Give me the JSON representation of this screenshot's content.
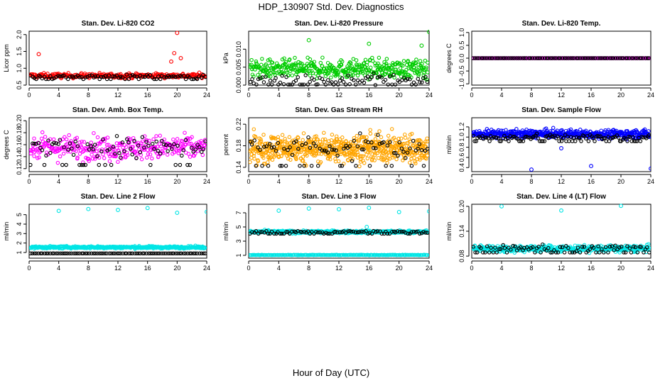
{
  "figure": {
    "title": "HDP_130907  Std. Dev. Diagnostics",
    "xlabel": "Hour of Day (UTC)"
  },
  "chart_data": [
    {
      "type": "scatter",
      "title": "Stan. Dev. Li-820 CO2",
      "ylabel": "Licor ppm",
      "xlim": [
        0,
        24
      ],
      "xticks": [
        0,
        4,
        8,
        12,
        16,
        20,
        24
      ],
      "ylim": [
        0.5,
        2.1
      ],
      "yticks": [
        0.5,
        1.0,
        1.5,
        2.0
      ],
      "ytick_labels": [
        "0.5",
        "1.0",
        "1.5",
        "2.0"
      ],
      "series": [
        {
          "color": "#ff0000",
          "n": 300,
          "center": 0.78,
          "spread": 0.07,
          "outliers": [
            [
              1.3,
              1.42
            ],
            [
              19.6,
              1.45
            ],
            [
              20.0,
              2.05
            ],
            [
              19.2,
              1.2
            ],
            [
              20.5,
              1.3
            ]
          ]
        },
        {
          "color": "#000000",
          "n": 90,
          "center": 0.76,
          "spread": 0.05,
          "outliers": []
        }
      ]
    },
    {
      "type": "scatter",
      "title": "Stan. Dev. Li-820 Pressure",
      "ylabel": "kPa",
      "xlim": [
        0,
        24
      ],
      "xticks": [
        0,
        4,
        8,
        12,
        16,
        20,
        24
      ],
      "ylim": [
        0,
        0.015
      ],
      "yticks": [
        0,
        0.005,
        0.01
      ],
      "ytick_labels": [
        "0.000",
        "0.005",
        "0.010"
      ],
      "series": [
        {
          "color": "#00cc00",
          "n": 420,
          "center": 0.0045,
          "spread": 0.0025,
          "outliers": [
            [
              8.0,
              0.0125
            ],
            [
              16.0,
              0.0115
            ],
            [
              23.0,
              0.011
            ],
            [
              24.0,
              0.0148
            ]
          ]
        },
        {
          "color": "#000000",
          "n": 90,
          "center": 0.0015,
          "spread": 0.0015,
          "outliers": []
        }
      ]
    },
    {
      "type": "scatter",
      "title": "Stan. Dev. Li-820 Temp.",
      "ylabel": "degrees C",
      "xlim": [
        0,
        24
      ],
      "xticks": [
        0,
        4,
        8,
        12,
        16,
        20,
        24
      ],
      "ylim": [
        -1.05,
        1.05
      ],
      "yticks": [
        -1.0,
        -0.5,
        0.0,
        0.5,
        1.0
      ],
      "ytick_labels": [
        "-1.0",
        "-0.5",
        "0.0",
        "0.5",
        "1.0"
      ],
      "series": [
        {
          "color": "#ff00ff",
          "n": 180,
          "center": 0.0,
          "spread": 0.0,
          "outliers": []
        },
        {
          "color": "#000000",
          "n": 90,
          "center": 0.0,
          "spread": 0.0,
          "outliers": []
        }
      ]
    },
    {
      "type": "scatter",
      "title": "Stan. Dev. Amb. Box Temp.",
      "ylabel": "degrees C",
      "xlim": [
        0,
        24
      ],
      "xticks": [
        0,
        4,
        8,
        12,
        16,
        20,
        24
      ],
      "ylim": [
        0.115,
        0.205
      ],
      "yticks": [
        0.12,
        0.14,
        0.16,
        0.18,
        0.2
      ],
      "ytick_labels": [
        "0.12",
        "0.14",
        "0.16",
        "0.18",
        "0.20"
      ],
      "series": [
        {
          "color": "#ff00ff",
          "n": 320,
          "center": 0.155,
          "spread": 0.02,
          "outliers": []
        },
        {
          "color": "#000000",
          "n": 90,
          "center": 0.155,
          "spread": 0.018,
          "outliers": []
        }
      ]
    },
    {
      "type": "scatter",
      "title": "Stan. Dev. Gas Stream RH",
      "ylabel": "percent",
      "xlim": [
        0,
        24
      ],
      "xticks": [
        0,
        4,
        8,
        12,
        16,
        20,
        24
      ],
      "ylim": [
        0.132,
        0.232
      ],
      "yticks": [
        0.14,
        0.18,
        0.22
      ],
      "ytick_labels": [
        "0.14",
        "0.18",
        "0.22"
      ],
      "series": [
        {
          "color": "#ffa500",
          "n": 650,
          "center": 0.175,
          "spread": 0.025,
          "outliers": []
        },
        {
          "color": "#000000",
          "n": 90,
          "center": 0.178,
          "spread": 0.022,
          "outliers": []
        }
      ]
    },
    {
      "type": "scatter",
      "title": "Stan. Dev. Sample Flow",
      "ylabel": "ml/min",
      "xlim": [
        0,
        24
      ],
      "xticks": [
        0,
        4,
        8,
        12,
        16,
        20,
        24
      ],
      "ylim": [
        0.32,
        1.38
      ],
      "yticks": [
        0.4,
        0.6,
        0.8,
        1.0,
        1.2
      ],
      "ytick_labels": [
        "0.4",
        "0.6",
        "0.8",
        "1.0",
        "1.2"
      ],
      "series": [
        {
          "color": "#0000ff",
          "n": 500,
          "center": 1.06,
          "spread": 0.08,
          "outliers": [
            [
              8.0,
              0.36
            ],
            [
              16.0,
              0.43
            ],
            [
              24.0,
              0.38
            ],
            [
              12.0,
              0.78
            ]
          ]
        },
        {
          "color": "#000000",
          "n": 120,
          "center": 1.0,
          "spread": 0.05,
          "outliers": []
        }
      ]
    },
    {
      "type": "scatter",
      "title": "Stan. Dev. Line 2 Flow",
      "ylabel": "ml/min",
      "xlim": [
        0,
        24
      ],
      "xticks": [
        0,
        4,
        8,
        12,
        16,
        20,
        24
      ],
      "ylim": [
        0.4,
        6.1
      ],
      "yticks": [
        1,
        2,
        3,
        4,
        5
      ],
      "ytick_labels": [
        "1",
        "2",
        "3",
        "4",
        "5"
      ],
      "series": [
        {
          "color": "#00e5e5",
          "n": 420,
          "center": 1.55,
          "spread": 0.12,
          "outliers": [
            [
              4.0,
              5.4
            ],
            [
              8.0,
              5.6
            ],
            [
              12.0,
              5.5
            ],
            [
              16.0,
              5.7
            ],
            [
              20.0,
              5.2
            ],
            [
              24.0,
              5.3
            ]
          ]
        },
        {
          "color": "#000000",
          "n": 90,
          "center": 0.9,
          "spread": 0.0,
          "outliers": []
        }
      ]
    },
    {
      "type": "scatter",
      "title": "Stan. Dev. Line 3 Flow",
      "ylabel": "ml/min",
      "xlim": [
        0,
        24
      ],
      "xticks": [
        0,
        4,
        8,
        12,
        16,
        20,
        24
      ],
      "ylim": [
        0.6,
        8.2
      ],
      "yticks": [
        1,
        3,
        5,
        7
      ],
      "ytick_labels": [
        "1",
        "3",
        "5",
        "7"
      ],
      "series": [
        {
          "color": "#00e5e5",
          "n": 420,
          "center": 4.3,
          "spread": 0.2,
          "outliers": [
            [
              4.0,
              7.3
            ],
            [
              8.0,
              7.6
            ],
            [
              12.0,
              7.5
            ],
            [
              16.0,
              7.7
            ],
            [
              20.0,
              7.1
            ],
            [
              24.0,
              7.2
            ],
            [
              15.7,
              5.0
            ]
          ]
        },
        {
          "color": "#000000",
          "n": 90,
          "center": 4.3,
          "spread": 0.15,
          "outliers": []
        },
        {
          "color": "#00e5e5",
          "n": 200,
          "center": 1.05,
          "spread": 0.03,
          "outliers": []
        }
      ]
    },
    {
      "type": "scatter",
      "title": "Stan. Dev. Line 4 (LT) Flow",
      "ylabel": "ml/min",
      "xlim": [
        0,
        24
      ],
      "xticks": [
        0,
        4,
        8,
        12,
        16,
        20,
        24
      ],
      "ylim": [
        0.075,
        0.205
      ],
      "yticks": [
        0.08,
        0.14,
        0.2
      ],
      "ytick_labels": [
        "0.08",
        "0.14",
        "0.20"
      ],
      "series": [
        {
          "color": "#00e5e5",
          "n": 420,
          "center": 0.098,
          "spread": 0.008,
          "outliers": [
            [
              4.0,
              0.2
            ],
            [
              12.0,
              0.19
            ],
            [
              20.0,
              0.201
            ]
          ]
        },
        {
          "color": "#000000",
          "n": 90,
          "center": 0.1,
          "spread": 0.007,
          "outliers": []
        }
      ]
    }
  ]
}
